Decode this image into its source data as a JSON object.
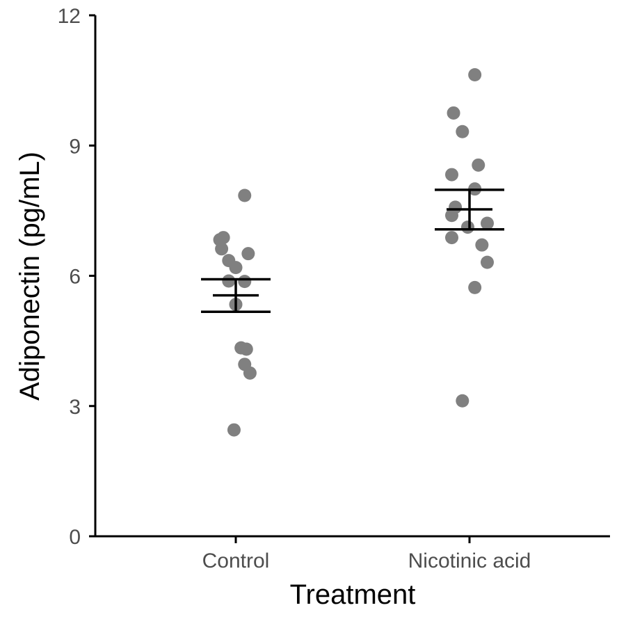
{
  "chart_data": {
    "type": "scatter",
    "xlabel": "Treatment",
    "ylabel": "Adiponectin (pg/mL)",
    "ylim": [
      0,
      12
    ],
    "yticks": [
      0,
      3,
      6,
      9,
      12
    ],
    "categories": [
      "Control",
      "Nicotinic acid"
    ],
    "point_color": "#808080",
    "summary_color": "#000000",
    "groups": [
      {
        "name": "Control",
        "points": [
          7.85,
          6.88,
          6.83,
          6.62,
          6.51,
          6.35,
          6.19,
          5.88,
          5.87,
          5.34,
          4.34,
          4.31,
          3.96,
          3.76,
          2.45
        ],
        "jitter": [
          0.05,
          -0.07,
          -0.09,
          -0.08,
          0.07,
          -0.04,
          0.0,
          -0.04,
          0.05,
          0.0,
          0.03,
          0.06,
          0.05,
          0.08,
          -0.01
        ],
        "mean": 5.55,
        "se_low": 5.17,
        "se_high": 5.92
      },
      {
        "name": "Nicotinic acid",
        "points": [
          10.63,
          9.75,
          9.32,
          8.55,
          8.33,
          8.0,
          7.58,
          7.39,
          7.21,
          7.12,
          6.88,
          6.71,
          6.31,
          5.73,
          3.12
        ],
        "jitter": [
          0.03,
          -0.09,
          -0.04,
          0.05,
          -0.1,
          0.03,
          -0.08,
          -0.1,
          0.1,
          -0.01,
          -0.1,
          0.07,
          0.1,
          0.03,
          -0.04
        ],
        "mean": 7.53,
        "se_low": 7.07,
        "se_high": 7.98
      }
    ]
  }
}
